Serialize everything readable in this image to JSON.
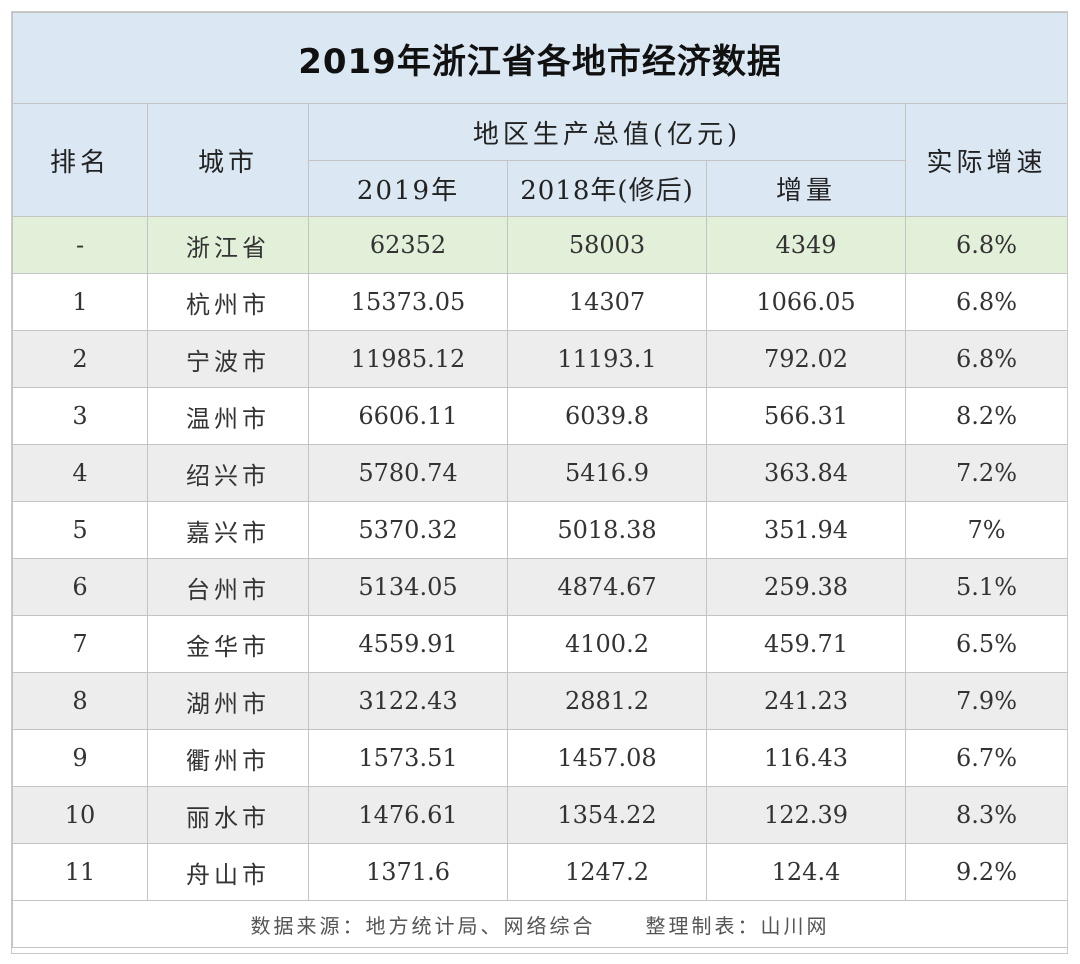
{
  "title": "2019年浙江省各地市经济数据",
  "headers": {
    "rank": "排名",
    "city": "城市",
    "gdp_group": "地区生产总值(亿元)",
    "y2019": "2019年",
    "y2018": "2018年(修后)",
    "increase": "增量",
    "growth": "实际增速"
  },
  "province": {
    "rank": "-",
    "city": "浙江省",
    "y2019": "62352",
    "y2018": "58003",
    "increase": "4349",
    "growth": "6.8%"
  },
  "rows": [
    {
      "rank": "1",
      "city": "杭州市",
      "y2019": "15373.05",
      "y2018": "14307",
      "increase": "1066.05",
      "growth": "6.8%"
    },
    {
      "rank": "2",
      "city": "宁波市",
      "y2019": "11985.12",
      "y2018": "11193.1",
      "increase": "792.02",
      "growth": "6.8%"
    },
    {
      "rank": "3",
      "city": "温州市",
      "y2019": "6606.11",
      "y2018": "6039.8",
      "increase": "566.31",
      "growth": "8.2%"
    },
    {
      "rank": "4",
      "city": "绍兴市",
      "y2019": "5780.74",
      "y2018": "5416.9",
      "increase": "363.84",
      "growth": "7.2%"
    },
    {
      "rank": "5",
      "city": "嘉兴市",
      "y2019": "5370.32",
      "y2018": "5018.38",
      "increase": "351.94",
      "growth": "7%"
    },
    {
      "rank": "6",
      "city": "台州市",
      "y2019": "5134.05",
      "y2018": "4874.67",
      "increase": "259.38",
      "growth": "5.1%"
    },
    {
      "rank": "7",
      "city": "金华市",
      "y2019": "4559.91",
      "y2018": "4100.2",
      "increase": "459.71",
      "growth": "6.5%"
    },
    {
      "rank": "8",
      "city": "湖州市",
      "y2019": "3122.43",
      "y2018": "2881.2",
      "increase": "241.23",
      "growth": "7.9%"
    },
    {
      "rank": "9",
      "city": "衢州市",
      "y2019": "1573.51",
      "y2018": "1457.08",
      "increase": "116.43",
      "growth": "6.7%"
    },
    {
      "rank": "10",
      "city": "丽水市",
      "y2019": "1476.61",
      "y2018": "1354.22",
      "increase": "122.39",
      "growth": "8.3%"
    },
    {
      "rank": "11",
      "city": "舟山市",
      "y2019": "1371.6",
      "y2018": "1247.2",
      "increase": "124.4",
      "growth": "9.2%"
    }
  ],
  "footer": {
    "source": "数据来源：地方统计局、网络综合",
    "maker": "整理制表：山川网"
  },
  "colors": {
    "header_bg": "#dbe8f4",
    "province_bg": "#e2efd9",
    "stripe_bg": "#ededed",
    "border": "#c4c4c4"
  }
}
